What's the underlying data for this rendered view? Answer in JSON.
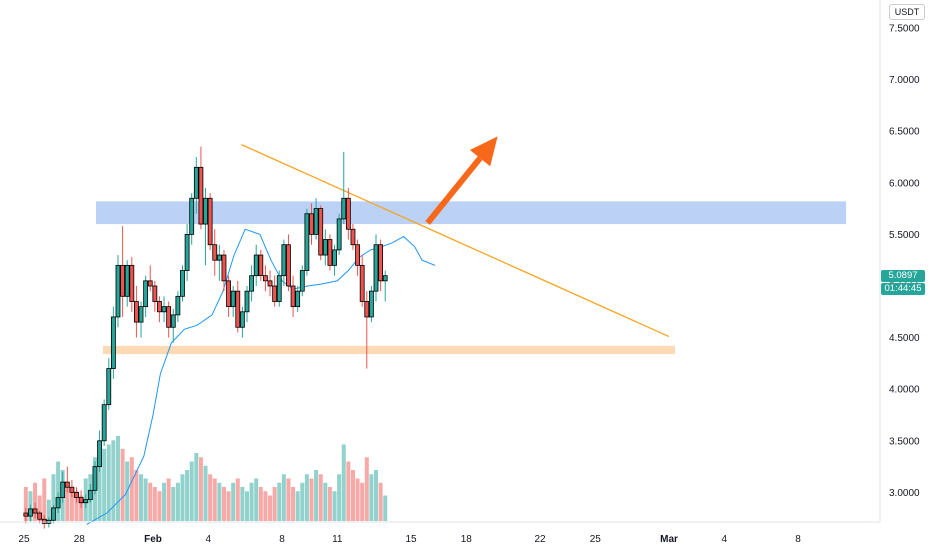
{
  "chart_data": {
    "type": "candlestick",
    "currency": "USDT",
    "last_price": "5.0897",
    "countdown": "01:44:45",
    "y_range": [
      2.65,
      7.75
    ],
    "y_ticks": [
      "7.5000",
      "7.0000",
      "6.5000",
      "6.0000",
      "5.5000",
      "5.0000",
      "4.5000",
      "4.0000",
      "3.5000",
      "3.0000"
    ],
    "x_ticks": [
      "25",
      "28",
      "Feb",
      "4",
      "8",
      "11",
      "15",
      "18",
      "22",
      "25",
      "Mar",
      "4",
      "8"
    ],
    "x_tick_values": [
      -7,
      -4,
      0,
      3,
      7,
      10,
      14,
      17,
      21,
      24,
      28,
      31,
      35
    ],
    "x_tick_bold": [
      false,
      false,
      true,
      false,
      false,
      false,
      false,
      false,
      false,
      false,
      true,
      false,
      false
    ],
    "candle_start_day": -6.9,
    "candle_step_days": 0.25,
    "candles": [
      [
        2.8,
        2.85,
        2.7,
        2.77
      ],
      [
        2.77,
        2.88,
        2.72,
        2.84
      ],
      [
        2.84,
        2.9,
        2.75,
        2.8
      ],
      [
        2.8,
        2.82,
        2.7,
        2.74
      ],
      [
        2.74,
        2.78,
        2.65,
        2.7
      ],
      [
        2.7,
        2.76,
        2.66,
        2.73
      ],
      [
        2.73,
        2.88,
        2.7,
        2.85
      ],
      [
        2.85,
        3.0,
        2.8,
        2.95
      ],
      [
        2.95,
        3.2,
        2.9,
        3.1
      ],
      [
        3.1,
        3.25,
        3.0,
        3.05
      ],
      [
        3.05,
        3.12,
        2.95,
        3.0
      ],
      [
        3.0,
        3.05,
        2.9,
        2.95
      ],
      [
        2.95,
        3.02,
        2.85,
        2.9
      ],
      [
        2.9,
        2.98,
        2.85,
        2.93
      ],
      [
        2.93,
        3.08,
        2.9,
        3.02
      ],
      [
        3.02,
        3.3,
        2.98,
        3.25
      ],
      [
        3.25,
        3.6,
        3.2,
        3.5
      ],
      [
        3.5,
        3.9,
        3.45,
        3.85
      ],
      [
        3.85,
        4.3,
        3.8,
        4.2
      ],
      [
        4.2,
        4.8,
        4.1,
        4.7
      ],
      [
        4.7,
        5.3,
        4.6,
        5.2
      ],
      [
        5.2,
        5.58,
        4.7,
        4.9
      ],
      [
        4.9,
        5.25,
        4.8,
        5.2
      ],
      [
        5.2,
        5.28,
        4.75,
        4.85
      ],
      [
        4.85,
        5.0,
        4.5,
        4.65
      ],
      [
        4.65,
        4.85,
        4.5,
        4.8
      ],
      [
        4.8,
        5.1,
        4.7,
        5.05
      ],
      [
        5.05,
        5.2,
        4.95,
        5.0
      ],
      [
        5.0,
        5.05,
        4.75,
        4.85
      ],
      [
        4.85,
        4.9,
        4.65,
        4.75
      ],
      [
        4.75,
        4.9,
        4.65,
        4.8
      ],
      [
        4.8,
        4.85,
        4.5,
        4.6
      ],
      [
        4.6,
        4.78,
        4.45,
        4.72
      ],
      [
        4.72,
        4.95,
        4.65,
        4.9
      ],
      [
        4.9,
        5.2,
        4.85,
        5.15
      ],
      [
        5.15,
        5.6,
        5.05,
        5.5
      ],
      [
        5.5,
        5.9,
        5.4,
        5.85
      ],
      [
        5.85,
        6.25,
        5.7,
        6.15
      ],
      [
        6.15,
        6.35,
        5.55,
        5.6
      ],
      [
        5.6,
        5.95,
        5.2,
        5.85
      ],
      [
        5.85,
        5.9,
        5.35,
        5.4
      ],
      [
        5.4,
        5.55,
        5.1,
        5.25
      ],
      [
        5.25,
        5.4,
        5.05,
        5.3
      ],
      [
        5.3,
        5.35,
        4.95,
        5.05
      ],
      [
        5.05,
        5.1,
        4.7,
        4.8
      ],
      [
        4.8,
        5.0,
        4.7,
        4.95
      ],
      [
        4.95,
        5.05,
        4.55,
        4.6
      ],
      [
        4.6,
        4.8,
        4.5,
        4.75
      ],
      [
        4.75,
        5.0,
        4.65,
        4.95
      ],
      [
        4.95,
        5.2,
        4.85,
        5.1
      ],
      [
        5.1,
        5.4,
        5.0,
        5.3
      ],
      [
        5.3,
        5.35,
        5.05,
        5.1
      ],
      [
        5.1,
        5.2,
        4.95,
        5.05
      ],
      [
        5.05,
        5.15,
        4.9,
        5.0
      ],
      [
        5.0,
        5.1,
        4.8,
        4.85
      ],
      [
        4.85,
        5.15,
        4.8,
        5.1
      ],
      [
        5.1,
        5.45,
        5.0,
        5.4
      ],
      [
        5.4,
        5.5,
        4.95,
        5.0
      ],
      [
        5.0,
        5.1,
        4.7,
        4.8
      ],
      [
        4.8,
        5.0,
        4.75,
        4.95
      ],
      [
        4.95,
        5.2,
        4.9,
        5.15
      ],
      [
        5.15,
        5.75,
        5.1,
        5.7
      ],
      [
        5.7,
        5.8,
        5.4,
        5.5
      ],
      [
        5.5,
        5.85,
        5.45,
        5.75
      ],
      [
        5.75,
        5.78,
        5.25,
        5.3
      ],
      [
        5.3,
        5.55,
        5.2,
        5.45
      ],
      [
        5.45,
        5.5,
        5.15,
        5.2
      ],
      [
        5.2,
        5.4,
        5.1,
        5.35
      ],
      [
        5.35,
        5.7,
        5.3,
        5.65
      ],
      [
        5.65,
        6.3,
        5.6,
        5.85
      ],
      [
        5.85,
        5.95,
        5.45,
        5.55
      ],
      [
        5.55,
        5.6,
        5.35,
        5.4
      ],
      [
        5.4,
        5.45,
        5.1,
        5.2
      ],
      [
        5.2,
        5.3,
        4.8,
        4.85
      ],
      [
        4.85,
        4.95,
        4.2,
        4.7
      ],
      [
        4.7,
        5.0,
        4.65,
        4.95
      ],
      [
        4.95,
        5.5,
        4.85,
        5.4
      ],
      [
        5.4,
        5.45,
        4.95,
        5.05
      ],
      [
        5.05,
        5.15,
        4.85,
        5.1
      ]
    ],
    "volumes": [
      0.4,
      0.35,
      0.45,
      0.3,
      0.5,
      0.25,
      0.55,
      0.7,
      0.6,
      0.45,
      0.4,
      0.35,
      0.3,
      0.5,
      0.55,
      0.75,
      0.8,
      0.85,
      0.9,
      0.95,
      1.0,
      0.85,
      0.7,
      0.75,
      0.6,
      0.55,
      0.5,
      0.45,
      0.4,
      0.35,
      0.45,
      0.5,
      0.4,
      0.45,
      0.55,
      0.6,
      0.7,
      0.8,
      0.75,
      0.65,
      0.55,
      0.5,
      0.45,
      0.4,
      0.35,
      0.45,
      0.5,
      0.4,
      0.35,
      0.45,
      0.5,
      0.4,
      0.35,
      0.3,
      0.4,
      0.45,
      0.55,
      0.5,
      0.4,
      0.35,
      0.45,
      0.55,
      0.5,
      0.6,
      0.55,
      0.45,
      0.4,
      0.35,
      0.55,
      0.9,
      0.7,
      0.6,
      0.5,
      0.45,
      0.75,
      0.55,
      0.6,
      0.45,
      0.3
    ],
    "moving_average": [
      [
        -3.6,
        2.69
      ],
      [
        -2.5,
        2.8
      ],
      [
        -1.5,
        2.98
      ],
      [
        -0.5,
        3.35
      ],
      [
        0.0,
        3.75
      ],
      [
        0.4,
        4.15
      ],
      [
        1.0,
        4.45
      ],
      [
        1.7,
        4.58
      ],
      [
        2.4,
        4.62
      ],
      [
        3.2,
        4.72
      ],
      [
        3.8,
        4.95
      ],
      [
        4.4,
        5.3
      ],
      [
        5.0,
        5.55
      ],
      [
        5.8,
        5.5
      ],
      [
        6.4,
        5.25
      ],
      [
        7.0,
        5.05
      ],
      [
        7.6,
        4.97
      ],
      [
        8.4,
        5.0
      ],
      [
        9.2,
        5.02
      ],
      [
        10.0,
        5.05
      ],
      [
        10.6,
        5.15
      ],
      [
        11.2,
        5.28
      ],
      [
        11.8,
        5.35
      ],
      [
        12.4,
        5.38
      ],
      [
        13.0,
        5.42
      ],
      [
        13.6,
        5.48
      ],
      [
        14.2,
        5.38
      ],
      [
        14.6,
        5.25
      ],
      [
        15.3,
        5.2
      ]
    ],
    "resistance_zone": [
      5.6,
      5.82
    ],
    "support_zone": [
      4.34,
      4.42
    ],
    "trendline": [
      [
        4.8,
        6.37
      ],
      [
        28.0,
        4.51
      ]
    ],
    "arrow": [
      [
        14.9,
        5.61
      ],
      [
        18.7,
        6.45
      ]
    ],
    "colors": {
      "candle_up": "#26a69a",
      "candle_down": "#ef5350",
      "candle_border": "#000000",
      "moving_average": "#2196f3",
      "trendline": "#f5a623",
      "resistance_zone": "#bbd1f5",
      "support_zone": "#fdd9b5",
      "arrow": "#f7681a",
      "price_tag": "#26a69a"
    }
  }
}
